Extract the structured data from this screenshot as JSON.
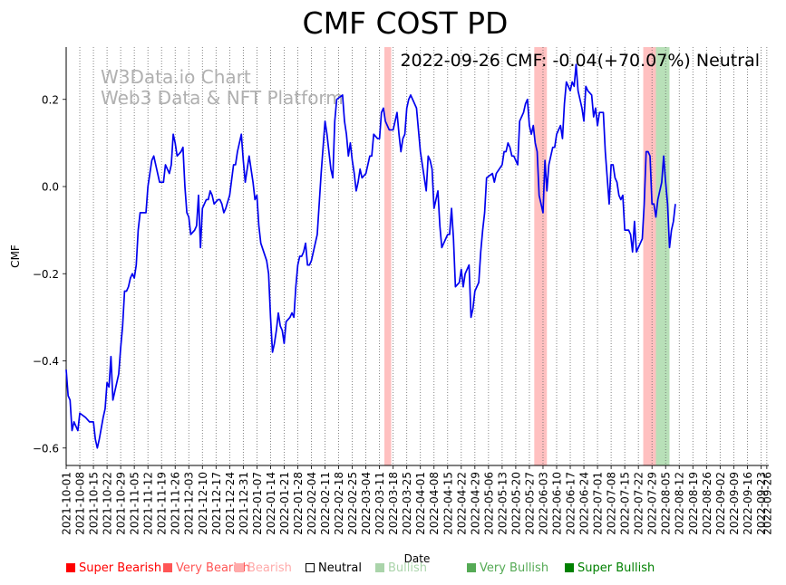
{
  "chart_data": {
    "type": "line",
    "title": "CMF COST PD",
    "annotation": "2022-09-26 CMF: -0.04(+70.07%) Neutral",
    "watermark": [
      "W3Data.io Chart",
      "Web3 Data & NFT Platform"
    ],
    "xlabel": "Date",
    "ylabel": "CMF",
    "ylim": [
      -0.64,
      0.32
    ],
    "yticks": [
      -0.6,
      -0.4,
      -0.2,
      0.0,
      0.2
    ],
    "ytick_labels": [
      "−0.6",
      "−0.4",
      "−0.2",
      "0.0",
      "0.2"
    ],
    "x_start": "2021-10-01",
    "x_end": "2022-09-27",
    "xtick_labels": [
      "2021-10-01",
      "2021-10-08",
      "2021-10-15",
      "2021-10-22",
      "2021-10-29",
      "2021-11-05",
      "2021-11-12",
      "2021-11-19",
      "2021-11-26",
      "2021-12-03",
      "2021-12-10",
      "2021-12-17",
      "2021-12-24",
      "2021-12-31",
      "2022-01-07",
      "2022-01-14",
      "2022-01-21",
      "2022-01-28",
      "2022-02-04",
      "2022-02-11",
      "2022-02-18",
      "2022-02-25",
      "2022-03-04",
      "2022-03-11",
      "2022-03-18",
      "2022-03-25",
      "2022-04-01",
      "2022-04-08",
      "2022-04-15",
      "2022-04-22",
      "2022-04-29",
      "2022-05-06",
      "2022-05-13",
      "2022-05-20",
      "2022-05-27",
      "2022-06-03",
      "2022-06-10",
      "2022-06-17",
      "2022-06-24",
      "2022-07-01",
      "2022-07-08",
      "2022-07-15",
      "2022-07-22",
      "2022-07-29",
      "2022-08-05",
      "2022-08-12",
      "2022-08-19",
      "2022-08-26",
      "2022-09-02",
      "2022-09-09",
      "2022-09-16",
      "2022-09-23",
      "2022-09-26"
    ],
    "line_color": "#0000ee",
    "points": [
      [
        0,
        -0.42
      ],
      [
        1,
        -0.48
      ],
      [
        2,
        -0.49
      ],
      [
        3,
        -0.56
      ],
      [
        4,
        -0.54
      ],
      [
        5,
        -0.55
      ],
      [
        6,
        -0.56
      ],
      [
        7,
        -0.52
      ],
      [
        10,
        -0.53
      ],
      [
        12,
        -0.54
      ],
      [
        14,
        -0.54
      ],
      [
        15,
        -0.58
      ],
      [
        16,
        -0.6
      ],
      [
        17,
        -0.58
      ],
      [
        19,
        -0.53
      ],
      [
        20,
        -0.51
      ],
      [
        21,
        -0.45
      ],
      [
        22,
        -0.46
      ],
      [
        23,
        -0.39
      ],
      [
        24,
        -0.49
      ],
      [
        26,
        -0.45
      ],
      [
        27,
        -0.43
      ],
      [
        28,
        -0.37
      ],
      [
        29,
        -0.32
      ],
      [
        30,
        -0.24
      ],
      [
        31,
        -0.24
      ],
      [
        32,
        -0.23
      ],
      [
        33,
        -0.21
      ],
      [
        34,
        -0.2
      ],
      [
        35,
        -0.21
      ],
      [
        36,
        -0.18
      ],
      [
        37,
        -0.1
      ],
      [
        38,
        -0.06
      ],
      [
        41,
        -0.06
      ],
      [
        42,
        0.0
      ],
      [
        43,
        0.03
      ],
      [
        44,
        0.06
      ],
      [
        45,
        0.07
      ],
      [
        47,
        0.03
      ],
      [
        48,
        0.01
      ],
      [
        50,
        0.01
      ],
      [
        51,
        0.05
      ],
      [
        53,
        0.03
      ],
      [
        54,
        0.05
      ],
      [
        55,
        0.12
      ],
      [
        56,
        0.1
      ],
      [
        57,
        0.07
      ],
      [
        59,
        0.08
      ],
      [
        60,
        0.09
      ],
      [
        61,
        0.0
      ],
      [
        62,
        -0.06
      ],
      [
        63,
        -0.07
      ],
      [
        64,
        -0.11
      ],
      [
        66,
        -0.1
      ],
      [
        67,
        -0.09
      ],
      [
        68,
        -0.02
      ],
      [
        69,
        -0.14
      ],
      [
        70,
        -0.05
      ],
      [
        72,
        -0.03
      ],
      [
        73,
        -0.03
      ],
      [
        74,
        -0.01
      ],
      [
        75,
        -0.02
      ],
      [
        76,
        -0.04
      ],
      [
        78,
        -0.03
      ],
      [
        79,
        -0.03
      ],
      [
        80,
        -0.04
      ],
      [
        81,
        -0.06
      ],
      [
        82,
        -0.05
      ],
      [
        84,
        -0.02
      ],
      [
        86,
        0.05
      ],
      [
        87,
        0.05
      ],
      [
        88,
        0.08
      ],
      [
        90,
        0.12
      ],
      [
        91,
        0.06
      ],
      [
        92,
        0.01
      ],
      [
        94,
        0.07
      ],
      [
        96,
        0.01
      ],
      [
        97,
        -0.03
      ],
      [
        98,
        -0.02
      ],
      [
        99,
        -0.09
      ],
      [
        100,
        -0.13
      ],
      [
        103,
        -0.17
      ],
      [
        104,
        -0.2
      ],
      [
        105,
        -0.3
      ],
      [
        106,
        -0.38
      ],
      [
        107,
        -0.36
      ],
      [
        108,
        -0.33
      ],
      [
        109,
        -0.29
      ],
      [
        110,
        -0.32
      ],
      [
        111,
        -0.33
      ],
      [
        112,
        -0.36
      ],
      [
        113,
        -0.31
      ],
      [
        115,
        -0.3
      ],
      [
        116,
        -0.29
      ],
      [
        117,
        -0.3
      ],
      [
        118,
        -0.23
      ],
      [
        119,
        -0.18
      ],
      [
        120,
        -0.16
      ],
      [
        121,
        -0.16
      ],
      [
        122,
        -0.15
      ],
      [
        123,
        -0.13
      ],
      [
        124,
        -0.18
      ],
      [
        125,
        -0.18
      ],
      [
        126,
        -0.17
      ],
      [
        129,
        -0.11
      ],
      [
        130,
        -0.04
      ],
      [
        131,
        0.03
      ],
      [
        133,
        0.15
      ],
      [
        134,
        0.12
      ],
      [
        135,
        0.08
      ],
      [
        136,
        0.04
      ],
      [
        137,
        0.02
      ],
      [
        138,
        0.15
      ],
      [
        139,
        0.2
      ],
      [
        142,
        0.21
      ],
      [
        143,
        0.15
      ],
      [
        144,
        0.12
      ],
      [
        145,
        0.07
      ],
      [
        146,
        0.1
      ],
      [
        147,
        0.06
      ],
      [
        148,
        0.03
      ],
      [
        149,
        -0.01
      ],
      [
        150,
        0.01
      ],
      [
        151,
        0.04
      ],
      [
        152,
        0.02
      ],
      [
        154,
        0.03
      ],
      [
        155,
        0.05
      ],
      [
        156,
        0.07
      ],
      [
        157,
        0.07
      ],
      [
        158,
        0.12
      ],
      [
        160,
        0.11
      ],
      [
        161,
        0.11
      ],
      [
        162,
        0.17
      ],
      [
        163,
        0.18
      ],
      [
        164,
        0.15
      ],
      [
        165,
        0.14
      ],
      [
        166,
        0.13
      ],
      [
        168,
        0.13
      ],
      [
        169,
        0.15
      ],
      [
        170,
        0.17
      ],
      [
        171,
        0.12
      ],
      [
        172,
        0.08
      ],
      [
        173,
        0.11
      ],
      [
        174,
        0.12
      ],
      [
        175,
        0.18
      ],
      [
        176,
        0.2
      ],
      [
        177,
        0.21
      ],
      [
        180,
        0.18
      ],
      [
        181,
        0.13
      ],
      [
        182,
        0.08
      ],
      [
        183,
        0.05
      ],
      [
        184,
        0.02
      ],
      [
        185,
        -0.01
      ],
      [
        186,
        0.07
      ],
      [
        187,
        0.06
      ],
      [
        188,
        0.04
      ],
      [
        189,
        -0.05
      ],
      [
        190,
        -0.03
      ],
      [
        191,
        -0.01
      ],
      [
        192,
        -0.09
      ],
      [
        193,
        -0.14
      ],
      [
        194,
        -0.13
      ],
      [
        195,
        -0.12
      ],
      [
        196,
        -0.11
      ],
      [
        197,
        -0.11
      ],
      [
        198,
        -0.05
      ],
      [
        199,
        -0.12
      ],
      [
        200,
        -0.23
      ],
      [
        202,
        -0.22
      ],
      [
        203,
        -0.19
      ],
      [
        204,
        -0.23
      ],
      [
        205,
        -0.2
      ],
      [
        206,
        -0.19
      ],
      [
        207,
        -0.18
      ],
      [
        208,
        -0.3
      ],
      [
        209,
        -0.28
      ],
      [
        210,
        -0.24
      ],
      [
        212,
        -0.22
      ],
      [
        213,
        -0.15
      ],
      [
        214,
        -0.1
      ],
      [
        215,
        -0.06
      ],
      [
        216,
        0.02
      ],
      [
        219,
        0.03
      ],
      [
        220,
        0.01
      ],
      [
        221,
        0.03
      ],
      [
        224,
        0.05
      ],
      [
        225,
        0.08
      ],
      [
        226,
        0.08
      ],
      [
        227,
        0.1
      ],
      [
        228,
        0.09
      ],
      [
        229,
        0.07
      ],
      [
        230,
        0.07
      ],
      [
        231,
        0.06
      ],
      [
        232,
        0.05
      ],
      [
        233,
        0.15
      ],
      [
        235,
        0.17
      ],
      [
        236,
        0.19
      ],
      [
        237,
        0.2
      ],
      [
        238,
        0.14
      ],
      [
        239,
        0.12
      ],
      [
        240,
        0.14
      ],
      [
        241,
        0.1
      ],
      [
        242,
        0.08
      ],
      [
        243,
        -0.02
      ],
      [
        244,
        -0.04
      ],
      [
        245,
        -0.06
      ],
      [
        246,
        0.06
      ],
      [
        247,
        -0.01
      ],
      [
        248,
        0.05
      ],
      [
        250,
        0.09
      ],
      [
        251,
        0.09
      ],
      [
        252,
        0.12
      ],
      [
        254,
        0.14
      ],
      [
        255,
        0.11
      ],
      [
        256,
        0.19
      ],
      [
        257,
        0.24
      ],
      [
        259,
        0.22
      ],
      [
        260,
        0.24
      ],
      [
        261,
        0.23
      ],
      [
        262,
        0.28
      ],
      [
        263,
        0.22
      ],
      [
        264,
        0.2
      ],
      [
        265,
        0.18
      ],
      [
        266,
        0.15
      ],
      [
        267,
        0.23
      ],
      [
        268,
        0.22
      ],
      [
        270,
        0.21
      ],
      [
        271,
        0.16
      ],
      [
        272,
        0.18
      ],
      [
        273,
        0.14
      ],
      [
        274,
        0.17
      ],
      [
        276,
        0.17
      ],
      [
        277,
        0.08
      ],
      [
        278,
        0.02
      ],
      [
        279,
        -0.04
      ],
      [
        280,
        0.05
      ],
      [
        281,
        0.05
      ],
      [
        282,
        0.02
      ],
      [
        283,
        0.01
      ],
      [
        284,
        -0.02
      ],
      [
        285,
        -0.03
      ],
      [
        286,
        -0.02
      ],
      [
        287,
        -0.1
      ],
      [
        289,
        -0.1
      ],
      [
        290,
        -0.11
      ],
      [
        291,
        -0.15
      ],
      [
        292,
        -0.08
      ],
      [
        293,
        -0.15
      ],
      [
        294,
        -0.14
      ],
      [
        295,
        -0.13
      ],
      [
        296,
        -0.12
      ],
      [
        297,
        -0.04
      ],
      [
        298,
        0.08
      ],
      [
        299,
        0.08
      ],
      [
        300,
        0.07
      ],
      [
        301,
        -0.04
      ],
      [
        302,
        -0.04
      ],
      [
        303,
        -0.07
      ],
      [
        304,
        -0.03
      ],
      [
        306,
        0.01
      ],
      [
        307,
        0.07
      ],
      [
        308,
        0.01
      ],
      [
        309,
        -0.04
      ],
      [
        310,
        -0.14
      ],
      [
        311,
        -0.1
      ],
      [
        312,
        -0.08
      ],
      [
        313,
        -0.04
      ]
    ],
    "bands": [
      {
        "category": "Bearish",
        "start": 163.5,
        "end": 167.0
      },
      {
        "category": "Bearish",
        "start": 240.5,
        "end": 247.0
      },
      {
        "category": "Bearish",
        "start": 296.5,
        "end": 303.0
      },
      {
        "category": "Bullish",
        "start": 303.0,
        "end": 310.0
      }
    ],
    "band_colors": {
      "Bearish": "#ffc0c0",
      "Bullish": "#b8e0b8"
    },
    "legend": [
      {
        "label": "Super Bearish",
        "color": "#ff0000",
        "text_color": "#ff0000"
      },
      {
        "label": "Very Bearish",
        "color": "#ff5555",
        "text_color": "#ff5555"
      },
      {
        "label": "Bearish",
        "color": "#ffaaaa",
        "text_color": "#ffaaaa"
      },
      {
        "label": "Neutral",
        "color": "#ffffff",
        "text_color": "#000000"
      },
      {
        "label": "Bullish",
        "color": "#aad4aa",
        "text_color": "#aad4aa"
      },
      {
        "label": "Very Bullish",
        "color": "#55aa55",
        "text_color": "#55aa55"
      },
      {
        "label": "Super Bullish",
        "color": "#008000",
        "text_color": "#008000"
      }
    ]
  }
}
